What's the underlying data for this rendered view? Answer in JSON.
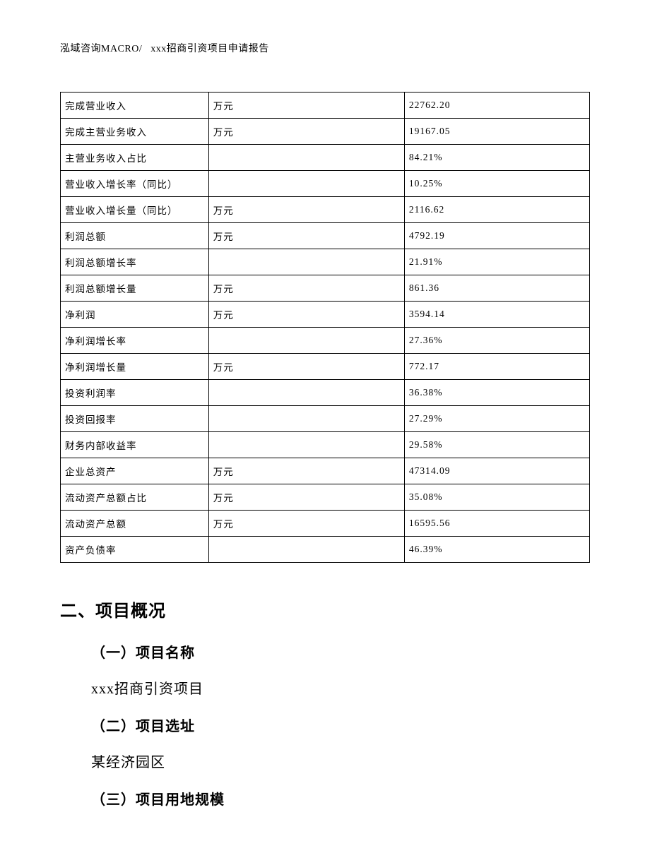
{
  "header": {
    "left": "泓域咨询MACRO/",
    "right": "xxx招商引资项目申请报告"
  },
  "table": {
    "type": "table",
    "columns_count": 3,
    "border_color": "#000000",
    "background_color": "#ffffff",
    "font_size_pt": 10,
    "col_widths_percent": [
      28,
      37,
      35
    ],
    "rows": [
      [
        "完成营业收入",
        "万元",
        "22762.20"
      ],
      [
        "完成主营业务收入",
        "万元",
        "19167.05"
      ],
      [
        "主营业务收入占比",
        "",
        "84.21%"
      ],
      [
        "营业收入增长率（同比）",
        "",
        "10.25%"
      ],
      [
        "营业收入增长量（同比）",
        "万元",
        "2116.62"
      ],
      [
        "利润总额",
        "万元",
        "4792.19"
      ],
      [
        "利润总额增长率",
        "",
        "21.91%"
      ],
      [
        "利润总额增长量",
        "万元",
        "861.36"
      ],
      [
        "净利润",
        "万元",
        "3594.14"
      ],
      [
        "净利润增长率",
        "",
        "27.36%"
      ],
      [
        "净利润增长量",
        "万元",
        "772.17"
      ],
      [
        "投资利润率",
        "",
        "36.38%"
      ],
      [
        "投资回报率",
        "",
        "27.29%"
      ],
      [
        "财务内部收益率",
        "",
        "29.58%"
      ],
      [
        "企业总资产",
        "万元",
        "47314.09"
      ],
      [
        "流动资产总额占比",
        "万元",
        "35.08%"
      ],
      [
        "流动资产总额",
        "万元",
        "16595.56"
      ],
      [
        "资产负债率",
        "",
        "46.39%"
      ]
    ]
  },
  "content": {
    "section_heading": "二、项目概况",
    "sub1_heading": "（一）项目名称",
    "sub1_text": "xxx招商引资项目",
    "sub2_heading": "（二）项目选址",
    "sub2_text": "某经济园区",
    "sub3_heading": "（三）项目用地规模"
  },
  "typography": {
    "header_font_size_pt": 10.5,
    "table_font_size_pt": 10,
    "h2_font_size_pt": 18,
    "h3_font_size_pt": 15,
    "body_font_size_pt": 15,
    "h2_font_family": "SimHei",
    "body_font_family": "SimSun",
    "text_color": "#000000"
  }
}
